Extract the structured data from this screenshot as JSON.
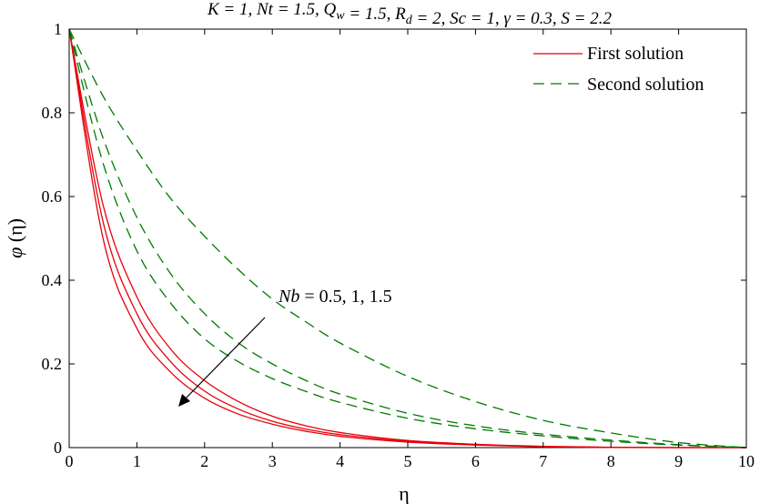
{
  "chart_data": {
    "type": "line",
    "title": "K = 1, Nt = 1.5, Q_w = 1.5, R_d = 2, Sc = 1, γ = 0.3, S = 2.2",
    "xlabel": "η",
    "ylabel": "φ (η)",
    "xlim": [
      0,
      10
    ],
    "ylim": [
      0,
      1
    ],
    "xticks": [
      "0",
      "1",
      "2",
      "3",
      "4",
      "5",
      "6",
      "7",
      "8",
      "9",
      "10"
    ],
    "yticks": [
      "0",
      "0.2",
      "0.4",
      "0.6",
      "0.8",
      "1"
    ],
    "grid": false,
    "legend_position": "top-right",
    "legend": [
      {
        "label": "First solution",
        "color": "#e8000b",
        "style": "solid"
      },
      {
        "label": "Second solution",
        "color": "#007a00",
        "style": "dashed"
      }
    ],
    "annotation": {
      "text": "Nb = 0.5, 1, 1.5"
    },
    "x": [
      0,
      0.5,
      1,
      1.5,
      2,
      2.5,
      3,
      3.5,
      4,
      5,
      6,
      7,
      8,
      9,
      10
    ],
    "series": [
      {
        "name": "First solution",
        "solution": "first",
        "Nb": 0.5,
        "values": [
          1,
          0.58,
          0.36,
          0.235,
          0.16,
          0.11,
          0.075,
          0.052,
          0.036,
          0.017,
          0.008,
          0.003,
          0.0008,
          0,
          0
        ]
      },
      {
        "name": "First solution",
        "solution": "first",
        "Nb": 1,
        "values": [
          1,
          0.54,
          0.32,
          0.205,
          0.135,
          0.092,
          0.063,
          0.044,
          0.031,
          0.015,
          0.007,
          0.0025,
          0.0005,
          0,
          0
        ]
      },
      {
        "name": "First solution",
        "solution": "first",
        "Nb": 1.5,
        "values": [
          1,
          0.5,
          0.285,
          0.18,
          0.118,
          0.08,
          0.056,
          0.039,
          0.027,
          0.013,
          0.006,
          0.002,
          0.0004,
          0,
          0
        ]
      },
      {
        "name": "Second solution",
        "solution": "second",
        "Nb": 0.5,
        "values": [
          1,
          0.84,
          0.71,
          0.595,
          0.505,
          0.425,
          0.355,
          0.3,
          0.25,
          0.17,
          0.11,
          0.065,
          0.035,
          0.012,
          0
        ]
      },
      {
        "name": "Second solution",
        "solution": "second",
        "Nb": 1,
        "values": [
          1,
          0.74,
          0.55,
          0.415,
          0.32,
          0.25,
          0.2,
          0.16,
          0.128,
          0.082,
          0.052,
          0.032,
          0.018,
          0.007,
          0
        ]
      },
      {
        "name": "Second solution",
        "solution": "second",
        "Nb": 1.5,
        "values": [
          1,
          0.68,
          0.47,
          0.345,
          0.26,
          0.205,
          0.165,
          0.134,
          0.108,
          0.07,
          0.045,
          0.028,
          0.015,
          0.006,
          0
        ]
      }
    ]
  }
}
